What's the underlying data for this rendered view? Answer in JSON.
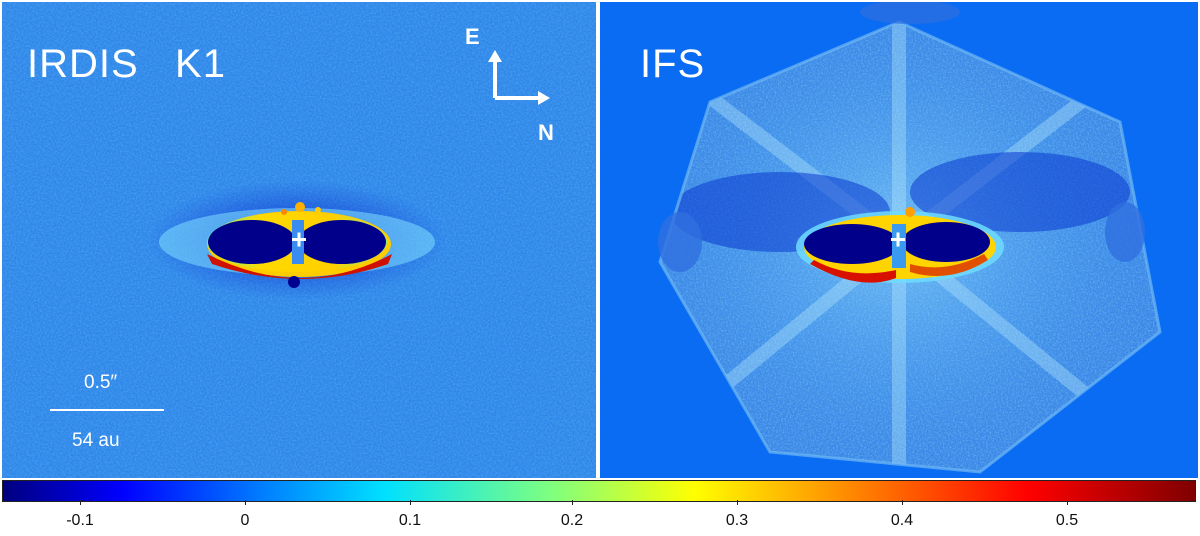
{
  "panels": {
    "left": {
      "title": "IRDIS   K1"
    },
    "right": {
      "title": "IFS"
    }
  },
  "compass": {
    "east": "E",
    "north": "N"
  },
  "scale_bar": {
    "angular": "0.5″",
    "physical": "54 au"
  },
  "colorbar": {
    "ticks": [
      "-0.1",
      "0",
      "0.1",
      "0.2",
      "0.3",
      "0.4",
      "0.5"
    ],
    "colormap": "jet"
  },
  "colors": {
    "background": "#1e6fe0",
    "ifs_outside": "#0a6cf2",
    "annotation": "#ffffff"
  }
}
